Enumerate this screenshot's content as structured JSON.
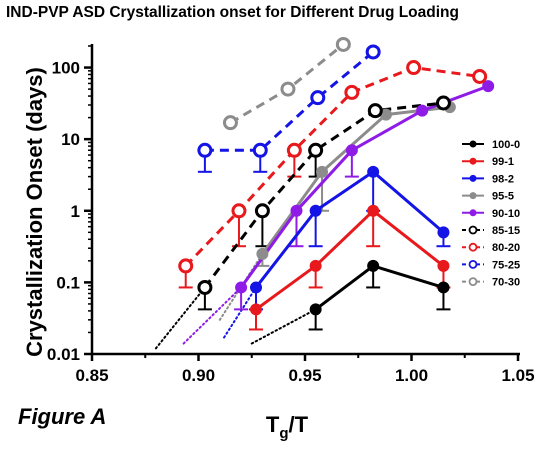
{
  "chart_data": {
    "type": "line",
    "title": "IND-PVP ASD Crystallization onset for Different Drug Loading",
    "figure_label": "Figure A",
    "xlabel_main": "T",
    "xlabel_sub": "g",
    "xlabel_tail": "/T",
    "ylabel": "Crystallization Onset (days)",
    "xlim": [
      0.85,
      1.05
    ],
    "ylim": [
      0.01,
      200
    ],
    "yscale": "log",
    "x_ticks": [
      "0.85",
      "0.90",
      "0.95",
      "1.00",
      "1.05"
    ],
    "y_ticks": [
      "0.01",
      "0.1",
      "1",
      "10",
      "100"
    ],
    "legend_position": "right",
    "series": [
      {
        "name": "100-0",
        "color": "#000000",
        "style": "solid",
        "marker": "filled",
        "x": [
          0.955,
          0.982,
          1.015
        ],
        "y": [
          0.042,
          0.17,
          0.085
        ],
        "err_low": [
          0.022,
          0.085,
          0.042
        ],
        "err_high": [
          null,
          null,
          null
        ],
        "extrap": [
          [
            0.925,
            0.014
          ],
          [
            0.955,
            0.042
          ]
        ]
      },
      {
        "name": "99-1",
        "color": "#e8191c",
        "style": "solid",
        "marker": "filled",
        "x": [
          0.927,
          0.955,
          0.982,
          1.015
        ],
        "y": [
          0.042,
          0.17,
          1.0,
          0.17
        ],
        "err_low": [
          0.022,
          0.085,
          0.32,
          0.085
        ],
        "err_high": [
          null,
          null,
          null,
          null
        ],
        "extrap": null
      },
      {
        "name": "98-2",
        "color": "#1414e6",
        "style": "solid",
        "marker": "filled",
        "x": [
          0.927,
          0.955,
          0.982,
          1.015
        ],
        "y": [
          0.085,
          1.0,
          3.5,
          0.5
        ],
        "err_low": [
          0.042,
          0.32,
          1.0,
          0.32
        ],
        "err_high": [
          null,
          null,
          null,
          null
        ],
        "extrap": [
          [
            0.912,
            0.017
          ],
          [
            0.927,
            0.085
          ]
        ]
      },
      {
        "name": "95-5",
        "color": "#8c8c8c",
        "style": "solid",
        "marker": "filled",
        "x": [
          0.93,
          0.958,
          0.988,
          1.018
        ],
        "y": [
          0.25,
          3.5,
          22,
          28
        ],
        "err_low": [
          0.17,
          1.0,
          null,
          null
        ],
        "err_high": [
          null,
          null,
          null,
          null
        ],
        "extrap": [
          [
            0.91,
            0.03
          ],
          [
            0.93,
            0.25
          ]
        ]
      },
      {
        "name": "90-10",
        "color": "#8f1be6",
        "style": "solid",
        "marker": "filled",
        "x": [
          0.92,
          0.946,
          0.972,
          1.005,
          1.036
        ],
        "y": [
          0.085,
          1.0,
          7,
          25,
          55
        ],
        "err_low": [
          0.042,
          0.32,
          3.0,
          null,
          null
        ],
        "err_high": [
          null,
          null,
          null,
          null,
          null
        ],
        "extrap": [
          [
            0.893,
            0.014
          ],
          [
            0.92,
            0.085
          ]
        ]
      },
      {
        "name": "85-15",
        "color": "#000000",
        "style": "dashed",
        "marker": "open",
        "x": [
          0.903,
          0.93,
          0.955,
          0.983,
          1.015
        ],
        "y": [
          0.085,
          1.0,
          7,
          25,
          32
        ],
        "err_low": [
          0.042,
          0.32,
          3.0,
          null,
          null
        ],
        "err_high": [
          null,
          null,
          null,
          null,
          null
        ],
        "extrap": [
          [
            0.88,
            0.012
          ],
          [
            0.903,
            0.085
          ]
        ]
      },
      {
        "name": "80-20",
        "color": "#e8191c",
        "style": "dashed",
        "marker": "open",
        "x": [
          0.894,
          0.919,
          0.945,
          0.972,
          1.001,
          1.032
        ],
        "y": [
          0.17,
          1.0,
          7,
          45,
          100,
          75
        ],
        "err_low": [
          0.085,
          0.32,
          3.0,
          null,
          null,
          null
        ],
        "err_high": [
          null,
          null,
          null,
          null,
          null,
          null
        ],
        "extrap": null
      },
      {
        "name": "75-25",
        "color": "#1414e6",
        "style": "dashed",
        "marker": "open",
        "x": [
          0.903,
          0.929,
          0.956,
          0.982
        ],
        "y": [
          7,
          7,
          38,
          165
        ],
        "err_low": [
          3.5,
          3.5,
          null,
          null
        ],
        "err_high": [
          null,
          null,
          null,
          null
        ],
        "extrap": null
      },
      {
        "name": "70-30",
        "color": "#8c8c8c",
        "style": "dashed",
        "marker": "open",
        "x": [
          0.915,
          0.942,
          0.968
        ],
        "y": [
          17,
          50,
          210
        ],
        "err_low": [
          null,
          null,
          null
        ],
        "err_high": [
          null,
          null,
          null
        ],
        "extrap": null
      }
    ]
  }
}
